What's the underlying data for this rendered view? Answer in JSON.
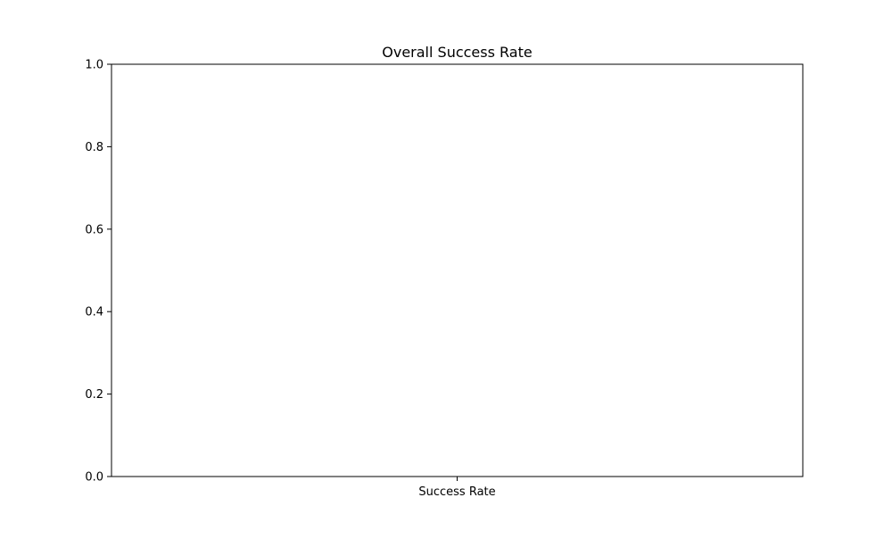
{
  "chart_data": {
    "type": "bar",
    "title": "Overall Success Rate",
    "xlabel": "",
    "ylabel": "",
    "categories": [
      "Success Rate"
    ],
    "values": [
      0
    ],
    "ylim": [
      0,
      1.0
    ],
    "yticks": [
      0.0,
      0.2,
      0.4,
      0.6,
      0.8,
      1.0
    ],
    "ytick_labels": [
      "0.0",
      "0.2",
      "0.4",
      "0.6",
      "0.8",
      "1.0"
    ],
    "grid": false,
    "legend": "none",
    "colors": {
      "axis": "#000000",
      "background": "#ffffff",
      "bar": "#1f77b4"
    }
  }
}
